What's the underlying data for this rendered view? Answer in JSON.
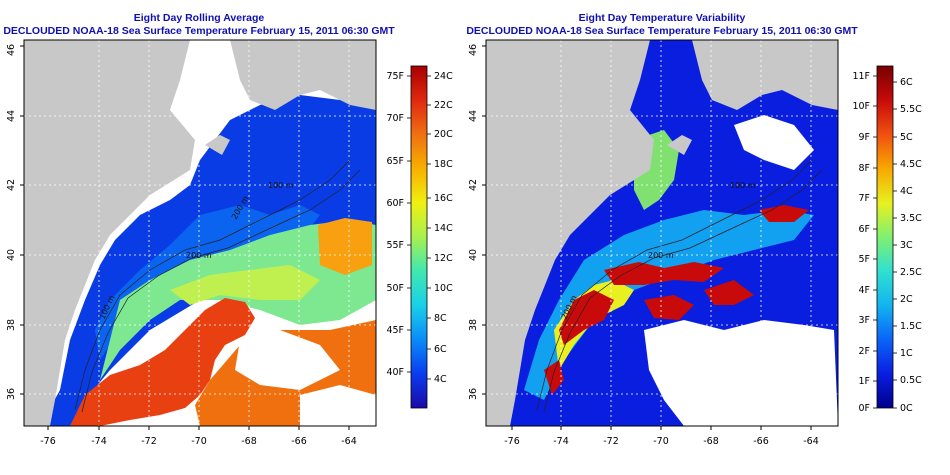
{
  "panels": [
    {
      "id": "avg",
      "title_line1": "Eight Day Rolling Average",
      "title_line2": "DECLOUDED NOAA-18 Sea Surface Temperature February 15, 2011 06:30 GMT",
      "x_ticks": [
        "-76",
        "-74",
        "-72",
        "-70",
        "-68",
        "-66",
        "-64"
      ],
      "y_ticks": [
        "36",
        "38",
        "40",
        "42",
        "44",
        "46"
      ],
      "contour_labels": [
        "100 m",
        "200 m",
        "100 m",
        "200 m"
      ],
      "colorbar": {
        "left_labels": [
          "75F",
          "70F",
          "65F",
          "60F",
          "55F",
          "50F",
          "45F",
          "40F"
        ],
        "right_labels": [
          "24C",
          "22C",
          "20C",
          "18C",
          "16C",
          "14C",
          "12C",
          "10C",
          "8C",
          "6C",
          "4C"
        ],
        "colors": [
          "#1a0aa8",
          "#0a3cf0",
          "#0a8cf8",
          "#19d0e8",
          "#40e8b0",
          "#a8f050",
          "#f0f010",
          "#f8b000",
          "#f07010",
          "#e02810",
          "#a80000"
        ]
      }
    },
    {
      "id": "var",
      "title_line1": "Eight Day Temperature Variability",
      "title_line2": "DECLOUDED NOAA-18 Sea Surface Temperature February 15, 2011 06:30 GMT",
      "x_ticks": [
        "-76",
        "-74",
        "-72",
        "-70",
        "-68",
        "-66",
        "-64"
      ],
      "y_ticks": [
        "36",
        "38",
        "40",
        "42",
        "44",
        "46"
      ],
      "contour_labels": [
        "200 m",
        "100 m",
        "200 m"
      ],
      "colorbar": {
        "left_labels": [
          "11F",
          "10F",
          "9F",
          "8F",
          "7F",
          "6F",
          "5F",
          "4F",
          "3F",
          "2F",
          "1F",
          "0F"
        ],
        "right_labels": [
          "6C",
          "5.5C",
          "5C",
          "4.5C",
          "4C",
          "3.5C",
          "3C",
          "2.5C",
          "2C",
          "1.5C",
          "1C",
          "0.5C",
          "0C"
        ],
        "colors": [
          "#00008c",
          "#0a1ee0",
          "#0a64f8",
          "#12b4f0",
          "#30e0d0",
          "#80f070",
          "#e8f020",
          "#f8a800",
          "#f05010",
          "#c80a0a",
          "#780000"
        ]
      }
    }
  ],
  "colors": {
    "title": "#1010b0",
    "land": "#c8c8c8",
    "nodata": "#ffffff",
    "gridline": "#ffffff",
    "contour": "#222222"
  }
}
